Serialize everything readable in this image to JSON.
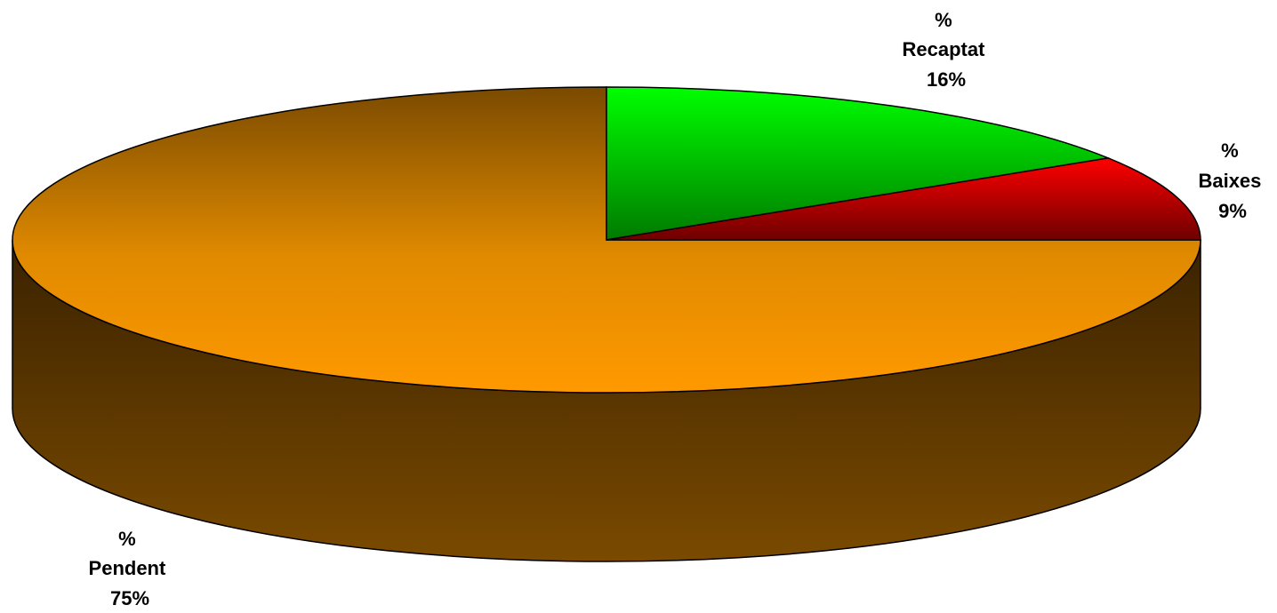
{
  "chart_data": {
    "type": "pie",
    "style": "3d",
    "title": "",
    "start_angle_deg": 90,
    "direction": "clockwise",
    "slices": [
      {
        "label_line1": "%",
        "label_line2": "Recaptat",
        "pct_text": "16%",
        "value": 16,
        "color": "#00ff00",
        "color_dark": "#006400"
      },
      {
        "label_line1": "%",
        "label_line2": "Baixes",
        "pct_text": "9%",
        "value": 9,
        "color": "#ff0000",
        "color_dark": "#6e0000"
      },
      {
        "label_line1": "%",
        "label_line2": "Pendent",
        "pct_text": "75%",
        "value": 75,
        "color": "#ff9900",
        "color_dark": "#7a4a00"
      }
    ]
  }
}
